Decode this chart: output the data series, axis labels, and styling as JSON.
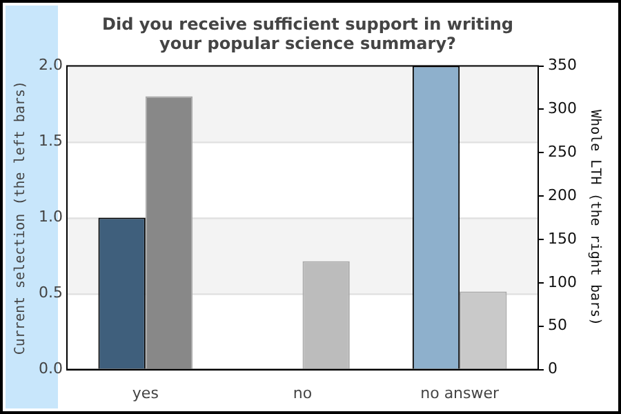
{
  "chart_data": {
    "type": "bar",
    "title": "Did you receive sufficient support in writing\nyour popular science summary?",
    "categories": [
      "yes",
      "no",
      "no answer"
    ],
    "series": [
      {
        "colors": [
          "#3f5f7c",
          "#3f5f7c",
          "#8eb0cc"
        ],
        "values": [
          1.0,
          0,
          2.0
        ]
      },
      {
        "colors": [
          "#888888",
          "#bcbcbc",
          "#c9c9c9"
        ],
        "values": [
          315,
          125,
          90
        ],
        "axis": "y2"
      }
    ],
    "ylabel": "Current selection (the left bars)",
    "y2label": "Whole LTH (the right bars)",
    "ylim": [
      0,
      2
    ],
    "yticks": [
      {
        "value": 0,
        "label": "0.0"
      },
      {
        "value": 0.5,
        "label": "0.5"
      },
      {
        "value": 1,
        "label": "1.0"
      },
      {
        "value": 1.5,
        "label": "1.5"
      },
      {
        "value": 2,
        "label": "2.0"
      }
    ],
    "y2lim": [
      0,
      350
    ],
    "y2ticks": [
      0,
      50,
      100,
      150,
      200,
      250,
      300,
      350
    ],
    "bands": [
      {
        "axis": "y",
        "from": 0.5,
        "to": 1,
        "color": "#f3f3f3"
      },
      {
        "axis": "y",
        "from": 1.5,
        "to": 2,
        "color": "#f3f3f3"
      }
    ],
    "grid": "y",
    "legend": false
  }
}
